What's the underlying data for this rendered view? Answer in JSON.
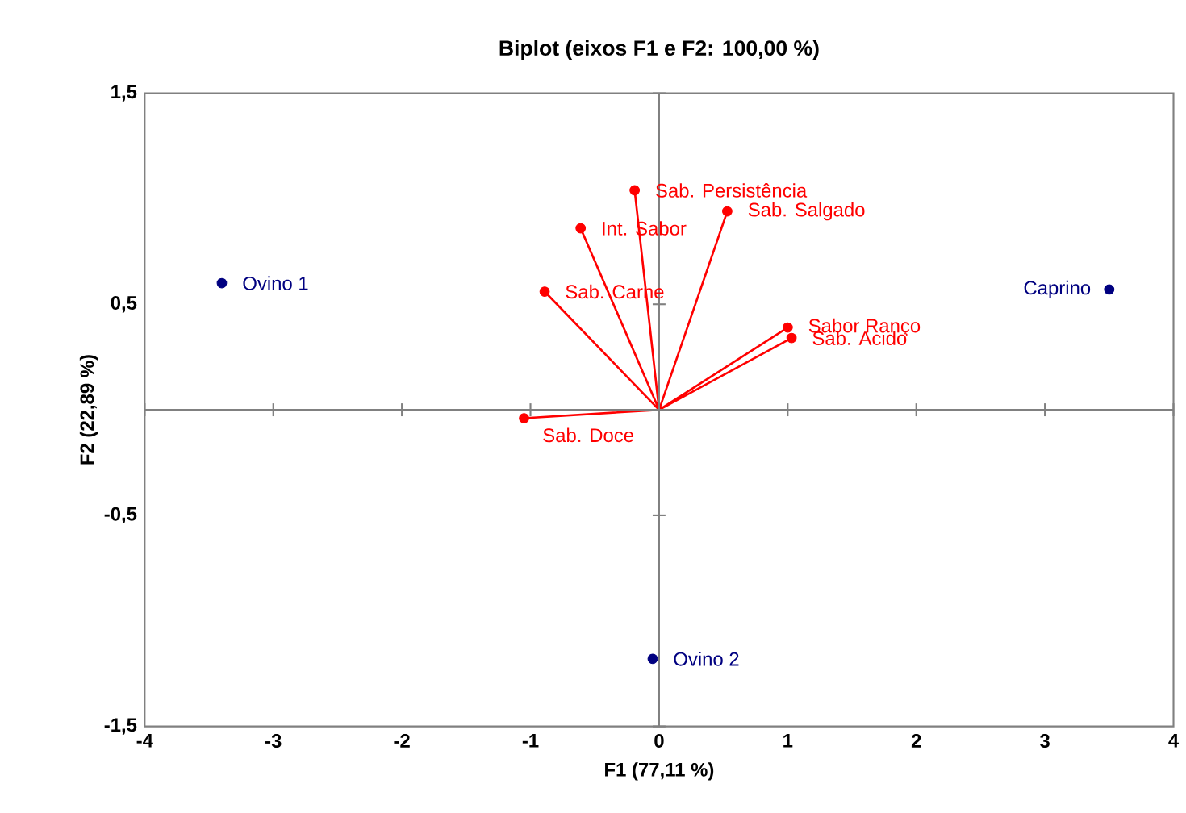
{
  "chart_data": {
    "type": "scatter",
    "title": "Biplot (eixos F1 e F2: 100,00 %)",
    "xlabel": "F1 (77,11 %)",
    "ylabel": "F2 (22,89 %)",
    "xlim": [
      -4,
      4
    ],
    "ylim": [
      -1.5,
      1.5
    ],
    "xticks": [
      -4,
      -3,
      -2,
      -1,
      0,
      1,
      2,
      3,
      4
    ],
    "yticks": [
      {
        "value": -1.5,
        "label": "-1,5"
      },
      {
        "value": -0.5,
        "label": "-0,5"
      },
      {
        "value": 0.5,
        "label": "0,5"
      },
      {
        "value": 1.5,
        "label": "1,5"
      }
    ],
    "series": [
      {
        "marker": "circle",
        "color": "#000080",
        "x": [
          -3.4,
          3.5,
          -0.05
        ],
        "values": [
          0.6,
          0.57,
          -1.18
        ]
      },
      {
        "marker": "circle",
        "color": "#ff0000",
        "x": [
          -0.19,
          0.53,
          -0.61,
          -0.89,
          1.0,
          1.03,
          -1.05
        ],
        "values": [
          1.04,
          0.94,
          0.86,
          0.56,
          0.39,
          0.34,
          -0.04
        ]
      },
      {
        "type": "line",
        "marker": "none",
        "color": "#ff0000",
        "x": [
          0,
          -0.19,
          0,
          0.53,
          0,
          -0.61,
          0,
          -0.89,
          0,
          1.0,
          0,
          1.03,
          0,
          -1.05
        ],
        "values": [
          0,
          1.04,
          0,
          0.94,
          0,
          0.86,
          0,
          0.56,
          0,
          0.39,
          0,
          0.34,
          0,
          -0.04
        ]
      }
    ],
    "annotations": [
      {
        "text": "Ovino 1",
        "x": -3.4,
        "y": 0.6
      },
      {
        "text": "Caprino",
        "x": 3.5,
        "y": 0.57
      },
      {
        "text": "Ovino 2",
        "x": -0.05,
        "y": -1.18
      },
      {
        "text": "Sab. Persistência",
        "x": -0.19,
        "y": 1.04
      },
      {
        "text": "Sab. Salgado",
        "x": 0.53,
        "y": 0.94
      },
      {
        "text": "Int. Sabor",
        "x": -0.61,
        "y": 0.86
      },
      {
        "text": "Sab. Carne",
        "x": -0.89,
        "y": 0.56
      },
      {
        "text": "Sabor Ranço",
        "x": 1.0,
        "y": 0.39
      },
      {
        "text": "Sab. Acido",
        "x": 1.03,
        "y": 0.34
      },
      {
        "text": "Sab. Doce",
        "x": -1.05,
        "y": -0.04
      }
    ]
  }
}
